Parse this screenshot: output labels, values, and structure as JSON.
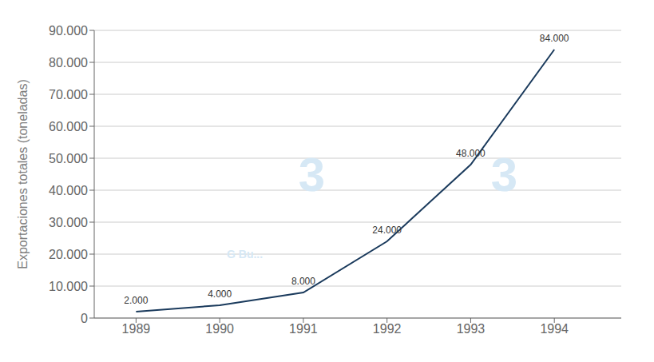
{
  "chart_data": {
    "type": "line",
    "x": [
      1989,
      1990,
      1991,
      1992,
      1993,
      1994
    ],
    "values": [
      2000,
      4000,
      8000,
      24000,
      48000,
      84000
    ],
    "value_labels": [
      "2.000",
      "4.000",
      "8.000",
      "24.000",
      "48.000",
      "84.000"
    ],
    "data_labels": true,
    "color": "#1a3a5c",
    "ylabel": "Exportaciones totales (toneladas)",
    "xlim": [
      1988.5,
      1994.8
    ],
    "xticks": [
      1989,
      1990,
      1991,
      1992,
      1993,
      1994
    ],
    "ylim": [
      0,
      90000
    ],
    "yticks": [
      0,
      {
        "value": 10000,
        "label": "10.000"
      },
      {
        "value": 20000,
        "label": "20.000"
      },
      {
        "value": 30000,
        "label": "30.000"
      },
      {
        "value": 40000,
        "label": "40.000"
      },
      {
        "value": 50000,
        "label": "50.000"
      },
      {
        "value": 60000,
        "label": "60.000"
      },
      {
        "value": 70000,
        "label": "70.000"
      },
      {
        "value": 80000,
        "label": "80.000"
      },
      {
        "value": 90000,
        "label": "90.000"
      }
    ],
    "grid": true,
    "annotations": [
      {
        "text": "3",
        "x": 1991.1,
        "y": 45000,
        "color": "#d6e8f5"
      },
      {
        "text": "3",
        "x": 1993.4,
        "y": 45000,
        "color": "#d6e8f5"
      },
      {
        "text": "G Bu...",
        "x": 1990.3,
        "y": 20000,
        "color": "#d6e8f5"
      }
    ]
  }
}
